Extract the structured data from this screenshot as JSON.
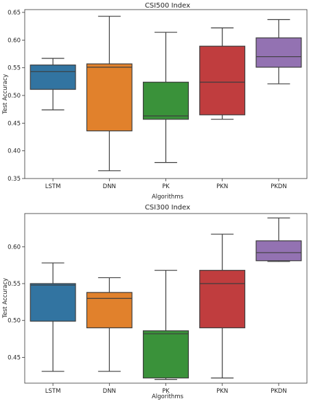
{
  "chart_data": [
    {
      "type": "box",
      "title": "CSI500 Index",
      "xlabel": "Algorithms",
      "ylabel": "Test Accuracy",
      "ylim": [
        0.35,
        0.655
      ],
      "yticks": [
        "0.35",
        "0.40",
        "0.45",
        "0.50",
        "0.55",
        "0.60",
        "0.65"
      ],
      "ytick_values": [
        0.35,
        0.4,
        0.45,
        0.5,
        0.55,
        0.6,
        0.65
      ],
      "categories": [
        "LSTM",
        "DNN",
        "PK",
        "PKN",
        "PKDN"
      ],
      "boxes": [
        {
          "category": "LSTM",
          "whisker_low": 0.474,
          "q1": 0.511,
          "median": 0.543,
          "q3": 0.555,
          "whisker_high": 0.567,
          "color": "#3274a1"
        },
        {
          "category": "DNN",
          "whisker_low": 0.364,
          "q1": 0.436,
          "median": 0.551,
          "q3": 0.557,
          "whisker_high": 0.643,
          "color": "#e1812c"
        },
        {
          "category": "PK",
          "whisker_low": 0.379,
          "q1": 0.457,
          "median": 0.463,
          "q3": 0.524,
          "whisker_high": 0.614,
          "color": "#3a923a"
        },
        {
          "category": "PKN",
          "whisker_low": 0.457,
          "q1": 0.465,
          "median": 0.524,
          "q3": 0.589,
          "whisker_high": 0.622,
          "color": "#c03d3e"
        },
        {
          "category": "PKDN",
          "whisker_low": 0.521,
          "q1": 0.551,
          "median": 0.57,
          "q3": 0.604,
          "whisker_high": 0.637,
          "color": "#9372b2"
        }
      ]
    },
    {
      "type": "box",
      "title": "CSI300 Index",
      "xlabel": "Algorithms",
      "ylabel": "Test Accuracy",
      "ylim": [
        0.415,
        0.645
      ],
      "yticks": [
        "0.45",
        "0.50",
        "0.55",
        "0.60"
      ],
      "ytick_values": [
        0.45,
        0.5,
        0.55,
        0.6
      ],
      "categories": [
        "LSTM",
        "DNN",
        "PK",
        "PKN",
        "PKDN"
      ],
      "boxes": [
        {
          "category": "LSTM",
          "whisker_low": 0.431,
          "q1": 0.499,
          "median": 0.548,
          "q3": 0.55,
          "whisker_high": 0.578,
          "color": "#3274a1"
        },
        {
          "category": "DNN",
          "whisker_low": 0.431,
          "q1": 0.49,
          "median": 0.53,
          "q3": 0.538,
          "whisker_high": 0.558,
          "color": "#e1812c"
        },
        {
          "category": "PK",
          "whisker_low": 0.42,
          "q1": 0.422,
          "median": 0.482,
          "q3": 0.486,
          "whisker_high": 0.568,
          "color": "#3a923a"
        },
        {
          "category": "PKN",
          "whisker_low": 0.422,
          "q1": 0.49,
          "median": 0.55,
          "q3": 0.568,
          "whisker_high": 0.617,
          "color": "#c03d3e"
        },
        {
          "category": "PKDN",
          "whisker_low": 0.58,
          "q1": 0.581,
          "median": 0.592,
          "q3": 0.608,
          "whisker_high": 0.639,
          "color": "#9372b2"
        }
      ]
    }
  ]
}
